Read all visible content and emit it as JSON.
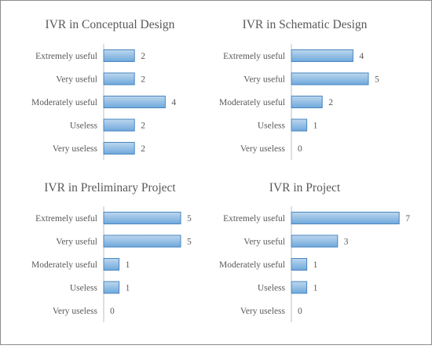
{
  "colors": {
    "bar_fill_top": "#bdd7ee",
    "bar_fill_bottom": "#6fa8dc",
    "bar_stroke": "#4a86c0",
    "axis": "#bfbfbf",
    "text": "#595959",
    "border": "#8c8c8c"
  },
  "chart_data": [
    {
      "type": "bar",
      "orientation": "horizontal",
      "title": "IVR in Conceptual Design",
      "categories": [
        "Extremely useful",
        "Very useful",
        "Moderately useful",
        "Useless",
        "Very useless"
      ],
      "values": [
        2,
        2,
        4,
        2,
        2
      ],
      "xlim": [
        0,
        4
      ],
      "grid": false,
      "data_labels": true
    },
    {
      "type": "bar",
      "orientation": "horizontal",
      "title": "IVR in Schematic Design",
      "categories": [
        "Extremely useful",
        "Very useful",
        "Moderately useful",
        "Useless",
        "Very useless"
      ],
      "values": [
        4,
        5,
        2,
        1,
        0
      ],
      "xlim": [
        0,
        5
      ],
      "grid": false,
      "data_labels": true
    },
    {
      "type": "bar",
      "orientation": "horizontal",
      "title": "IVR in Preliminary Project",
      "categories": [
        "Extremely useful",
        "Very useful",
        "Moderately useful",
        "Useless",
        "Very useless"
      ],
      "values": [
        5,
        5,
        1,
        1,
        0
      ],
      "xlim": [
        0,
        5
      ],
      "grid": false,
      "data_labels": true
    },
    {
      "type": "bar",
      "orientation": "horizontal",
      "title": "IVR in Project",
      "categories": [
        "Extremely useful",
        "Very useful",
        "Moderately useful",
        "Useless",
        "Very useless"
      ],
      "values": [
        7,
        3,
        1,
        1,
        0
      ],
      "xlim": [
        0,
        7
      ],
      "grid": false,
      "data_labels": true
    }
  ]
}
